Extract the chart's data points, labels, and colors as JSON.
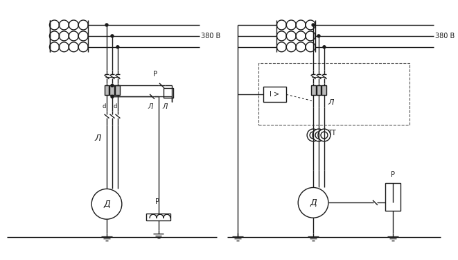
{
  "bg_color": "#ffffff",
  "line_color": "#1a1a1a",
  "fig_width": 6.61,
  "fig_height": 3.75,
  "label_380V_1": "380 B",
  "label_380V_2": "380 B",
  "label_D1": "Д",
  "label_D2": "Д",
  "label_L1": "Л",
  "label_L2": "Л",
  "label_L3": "Л",
  "label_L4": "Л",
  "label_P1": "Р",
  "label_P2": "Р",
  "label_P3": "Р",
  "label_TT": "ТТ",
  "label_I": "I >",
  "label_d1": "d",
  "label_d2": "d"
}
